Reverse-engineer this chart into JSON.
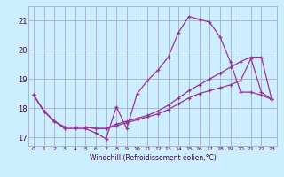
{
  "bg_color": "#cceeff",
  "grid_color": "#aaaacc",
  "line_color": "#993399",
  "xlim": [
    -0.5,
    23.5
  ],
  "ylim": [
    16.7,
    21.5
  ],
  "xticks": [
    0,
    1,
    2,
    3,
    4,
    5,
    6,
    7,
    8,
    9,
    10,
    11,
    12,
    13,
    14,
    15,
    16,
    17,
    18,
    19,
    20,
    21,
    22,
    23
  ],
  "yticks": [
    17,
    18,
    19,
    20,
    21
  ],
  "xlabel": "Windchill (Refroidissement éolien,°C)",
  "line1_x": [
    0,
    1,
    2,
    3,
    4,
    5,
    6,
    7,
    8,
    9,
    10,
    11,
    12,
    13,
    14,
    15,
    16,
    17,
    18,
    19,
    20,
    21,
    22,
    23
  ],
  "line1_y": [
    18.45,
    17.9,
    17.55,
    17.3,
    17.3,
    17.3,
    17.15,
    16.95,
    18.05,
    17.3,
    18.5,
    18.95,
    19.3,
    19.75,
    20.6,
    21.15,
    21.05,
    20.95,
    20.45,
    19.6,
    18.55,
    18.55,
    18.45,
    18.3
  ],
  "line2_x": [
    0,
    1,
    2,
    3,
    4,
    5,
    6,
    7,
    8,
    9,
    10,
    11,
    12,
    13,
    14,
    15,
    16,
    17,
    18,
    19,
    20,
    21,
    22,
    23
  ],
  "line2_y": [
    18.45,
    17.9,
    17.55,
    17.35,
    17.35,
    17.35,
    17.3,
    17.3,
    17.45,
    17.55,
    17.65,
    17.75,
    17.9,
    18.1,
    18.35,
    18.6,
    18.8,
    19.0,
    19.2,
    19.4,
    19.6,
    19.75,
    19.75,
    18.3
  ],
  "line3_x": [
    0,
    1,
    2,
    3,
    4,
    5,
    6,
    7,
    8,
    9,
    10,
    11,
    12,
    13,
    14,
    15,
    16,
    17,
    18,
    19,
    20,
    21,
    22,
    23
  ],
  "line3_y": [
    18.45,
    17.9,
    17.55,
    17.35,
    17.35,
    17.35,
    17.3,
    17.3,
    17.4,
    17.5,
    17.6,
    17.7,
    17.8,
    17.95,
    18.15,
    18.35,
    18.5,
    18.6,
    18.7,
    18.8,
    18.95,
    19.7,
    18.55,
    18.3
  ]
}
